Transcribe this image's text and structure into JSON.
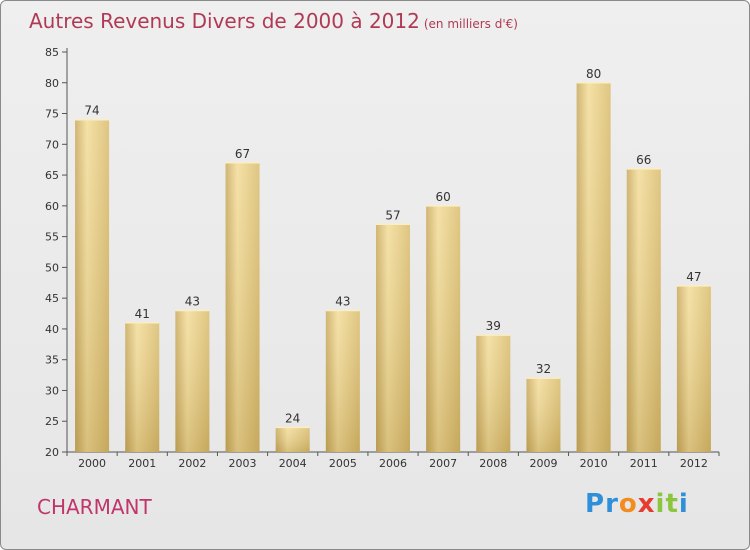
{
  "chart_data": {
    "type": "bar",
    "title": "Autres Revenus Divers de 2000 à 2012",
    "subtitle": "(en milliers d'€)",
    "categories": [
      "2000",
      "2001",
      "2002",
      "2003",
      "2004",
      "2005",
      "2006",
      "2007",
      "2008",
      "2009",
      "2010",
      "2011",
      "2012"
    ],
    "values": [
      74,
      41,
      43,
      67,
      24,
      43,
      57,
      60,
      39,
      32,
      80,
      66,
      47
    ],
    "ylim": [
      20,
      85
    ],
    "yticks": [
      20,
      25,
      30,
      35,
      40,
      45,
      50,
      55,
      60,
      65,
      70,
      75,
      80,
      85
    ],
    "grid": false,
    "bar_color": "#e4c97e"
  },
  "commune": "CHARMANT",
  "logo": {
    "letters": [
      "P",
      "r",
      "o",
      "x",
      "i",
      "t",
      "i"
    ],
    "colors": [
      "#2f8fd8",
      "#2f8fd8",
      "#f28c1e",
      "#e63b2e",
      "#8cc63f",
      "#8cc63f",
      "#2f8fd8"
    ]
  }
}
